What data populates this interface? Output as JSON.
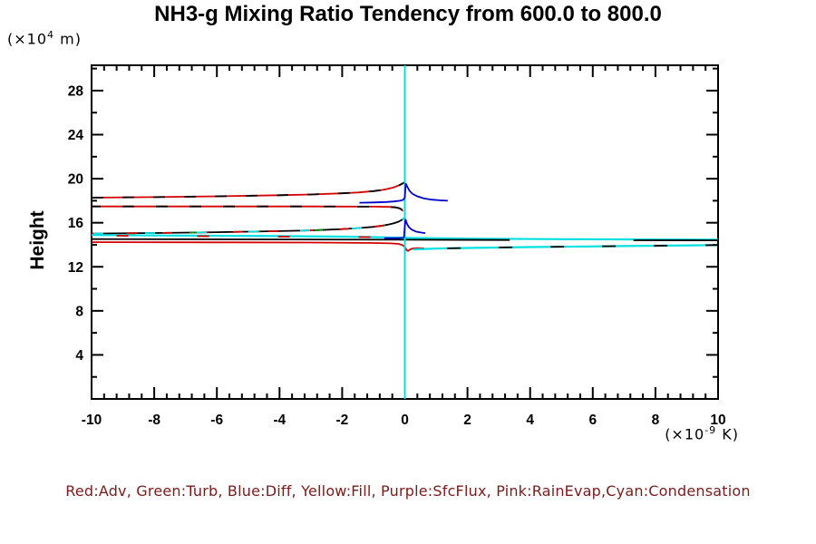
{
  "window": {
    "background": "#ffffff"
  },
  "chart_data": {
    "type": "line",
    "title": "NH3-g Mixing Ratio Tendency from 600.0 to 800.0",
    "ylabel": "Height",
    "y_unit": {
      "prefix": "(×10",
      "exponent": "4",
      "suffix": " m)"
    },
    "x_unit": {
      "prefix": "(×10",
      "exponent": "-9",
      "suffix": " K)"
    },
    "xlim": [
      -10,
      10
    ],
    "ylim": [
      0,
      30.3
    ],
    "x_major_step": 2,
    "x_minor_step": 0.4,
    "y_major_step": 4,
    "y_minor_step": 2,
    "grid": false,
    "x_tick_labels": [
      "-10",
      "-8",
      "-6",
      "-4",
      "-2",
      "0",
      "2",
      "4",
      "6",
      "8",
      "10"
    ],
    "y_tick_labels": [
      "4",
      "8",
      "12",
      "16",
      "20",
      "24",
      "28"
    ],
    "legend_text": "Red:Adv, Green:Turb, Blue:Diff, Yellow:Fill, Purple:SfcFlux, Pink:RainEvap,Cyan:Condensation",
    "legend_meaning": [
      {
        "color_name": "Red",
        "meaning": "Adv"
      },
      {
        "color_name": "Green",
        "meaning": "Turb"
      },
      {
        "color_name": "Blue",
        "meaning": "Diff"
      },
      {
        "color_name": "Yellow",
        "meaning": "Fill"
      },
      {
        "color_name": "Purple",
        "meaning": "SfcFlux"
      },
      {
        "color_name": "Pink",
        "meaning": "RainEvap"
      },
      {
        "color_name": "Cyan",
        "meaning": "Condensation"
      }
    ],
    "colors": {
      "red": "#d40000",
      "green": "#008800",
      "blue": "#0000cc",
      "cyan": "#00e0e0",
      "black": "#000000",
      "axis": "#000000",
      "legend_text": "#7a1a1a",
      "background": "#ffffff"
    },
    "series": [
      {
        "name": "adv-upper-red",
        "color": "#d40000",
        "width": 1.8,
        "points": [
          [
            -10,
            18.28
          ],
          [
            -8,
            18.33
          ],
          [
            -6,
            18.4
          ],
          [
            -4,
            18.5
          ],
          [
            -3,
            18.57
          ],
          [
            -2,
            18.67
          ],
          [
            -1.5,
            18.75
          ],
          [
            -1,
            18.87
          ],
          [
            -0.7,
            18.99
          ],
          [
            -0.5,
            19.1
          ],
          [
            -0.35,
            19.22
          ],
          [
            -0.2,
            19.38
          ],
          [
            -0.1,
            19.52
          ],
          [
            -0.03,
            19.64
          ],
          [
            0,
            19.68
          ]
        ]
      },
      {
        "name": "adv-upper-black-dash",
        "color": "#000000",
        "width": 1.8,
        "dash": "13 21",
        "points": [
          [
            -10,
            18.28
          ],
          [
            -8,
            18.33
          ],
          [
            -6,
            18.4
          ],
          [
            -4,
            18.5
          ],
          [
            -3,
            18.57
          ],
          [
            -2,
            18.67
          ],
          [
            -1.5,
            18.75
          ],
          [
            -1,
            18.87
          ],
          [
            -0.7,
            18.99
          ],
          [
            -0.5,
            19.1
          ],
          [
            -0.35,
            19.22
          ],
          [
            -0.2,
            19.38
          ],
          [
            -0.1,
            19.52
          ],
          [
            -0.03,
            19.64
          ],
          [
            0,
            19.68
          ]
        ]
      },
      {
        "name": "adv-mid-red",
        "color": "#d40000",
        "width": 1.8,
        "points": [
          [
            -10,
            17.48
          ],
          [
            -3,
            17.48
          ],
          [
            -1,
            17.46
          ],
          [
            -0.5,
            17.44
          ],
          [
            -0.3,
            17.4
          ],
          [
            -0.18,
            17.32
          ],
          [
            -0.1,
            17.2
          ],
          [
            -0.06,
            17.05
          ]
        ]
      },
      {
        "name": "adv-mid-black-dash",
        "color": "#000000",
        "width": 1.8,
        "dash": "13 24",
        "dashoffset": "40",
        "points": [
          [
            -10,
            17.48
          ],
          [
            -3,
            17.48
          ],
          [
            -1,
            17.46
          ],
          [
            -0.5,
            17.44
          ],
          [
            -0.3,
            17.4
          ],
          [
            -0.18,
            17.32
          ],
          [
            -0.1,
            17.2
          ],
          [
            -0.06,
            17.05
          ]
        ]
      },
      {
        "name": "mid-curve-black",
        "color": "#000000",
        "width": 1.8,
        "points": [
          [
            -10,
            15.02
          ],
          [
            -8,
            15.07
          ],
          [
            -6,
            15.14
          ],
          [
            -4,
            15.24
          ],
          [
            -3,
            15.31
          ],
          [
            -2,
            15.42
          ],
          [
            -1.5,
            15.51
          ],
          [
            -1,
            15.63
          ],
          [
            -0.7,
            15.74
          ],
          [
            -0.5,
            15.85
          ],
          [
            -0.35,
            15.96
          ],
          [
            -0.2,
            16.1
          ],
          [
            -0.1,
            16.25
          ],
          [
            -0.04,
            16.38
          ],
          [
            0,
            16.46
          ]
        ]
      },
      {
        "name": "mid-curve-green-dash",
        "color": "#008800",
        "width": 1.8,
        "dash": "9 60",
        "dashoffset": "30",
        "points": [
          [
            -10,
            15.02
          ],
          [
            -8,
            15.07
          ],
          [
            -6,
            15.14
          ],
          [
            -4,
            15.24
          ],
          [
            -3,
            15.31
          ],
          [
            -2,
            15.42
          ],
          [
            -1.5,
            15.51
          ],
          [
            -1,
            15.63
          ],
          [
            -0.7,
            15.74
          ],
          [
            -0.5,
            15.85
          ],
          [
            -0.35,
            15.96
          ],
          [
            -0.2,
            16.1
          ],
          [
            -0.1,
            16.25
          ],
          [
            -0.04,
            16.38
          ],
          [
            0,
            16.46
          ]
        ]
      },
      {
        "name": "mid-curve-red-dash",
        "color": "#d40000",
        "width": 1.8,
        "dash": "11 28",
        "points": [
          [
            -10,
            15.02
          ],
          [
            -8,
            15.07
          ],
          [
            -6,
            15.14
          ],
          [
            -4,
            15.24
          ],
          [
            -3,
            15.31
          ],
          [
            -2,
            15.42
          ],
          [
            -1.5,
            15.51
          ],
          [
            -1,
            15.63
          ],
          [
            -0.7,
            15.74
          ],
          [
            -0.5,
            15.85
          ],
          [
            -0.35,
            15.96
          ],
          [
            -0.2,
            16.1
          ],
          [
            -0.1,
            16.25
          ],
          [
            -0.04,
            16.38
          ],
          [
            0,
            16.46
          ]
        ]
      },
      {
        "name": "mid-curve-cyan-dash",
        "color": "#00e0e0",
        "width": 1.8,
        "dash": "11 46",
        "dashoffset": "55",
        "points": [
          [
            -10,
            15.02
          ],
          [
            -8,
            15.07
          ],
          [
            -6,
            15.14
          ],
          [
            -4,
            15.24
          ],
          [
            -3,
            15.31
          ],
          [
            -2,
            15.42
          ],
          [
            -1.5,
            15.51
          ],
          [
            -1,
            15.63
          ],
          [
            -0.7,
            15.74
          ],
          [
            -0.5,
            15.85
          ],
          [
            -0.35,
            15.96
          ],
          [
            -0.2,
            16.1
          ],
          [
            -0.1,
            16.25
          ],
          [
            -0.04,
            16.38
          ],
          [
            0,
            16.46
          ]
        ]
      },
      {
        "name": "condensation-main-cyan",
        "color": "#00e0e0",
        "width": 2.2,
        "points": [
          [
            -10,
            14.88
          ],
          [
            -4,
            14.79
          ],
          [
            -2,
            14.74
          ],
          [
            -1,
            14.7
          ],
          [
            0,
            14.62
          ],
          [
            2,
            14.56
          ],
          [
            5,
            14.51
          ],
          [
            10,
            14.47
          ]
        ]
      },
      {
        "name": "condensation-main-red-dash",
        "color": "#d40000",
        "width": 1.8,
        "dash": "13 76",
        "points": [
          [
            -9.2,
            14.82
          ],
          [
            -0.5,
            14.68
          ]
        ]
      },
      {
        "name": "total-horiz-black-left",
        "color": "#000000",
        "width": 1.8,
        "points": [
          [
            -10,
            14.52
          ],
          [
            0,
            14.46
          ],
          [
            3.35,
            14.43
          ]
        ]
      },
      {
        "name": "total-horiz-black-right",
        "color": "#000000",
        "width": 1.8,
        "points": [
          [
            7.3,
            14.41
          ],
          [
            10,
            14.4
          ]
        ]
      },
      {
        "name": "adv-lower-red",
        "color": "#d40000",
        "width": 1.8,
        "points": [
          [
            -10,
            14.24
          ],
          [
            -6,
            14.22
          ],
          [
            -3,
            14.2
          ],
          [
            -1,
            14.16
          ],
          [
            -0.45,
            14.13
          ],
          [
            -0.2,
            14.08
          ],
          [
            -0.08,
            13.97
          ],
          [
            0,
            13.8
          ],
          [
            0.06,
            13.5
          ],
          [
            0.1,
            13.44
          ],
          [
            0.16,
            13.56
          ],
          [
            0.25,
            13.66
          ],
          [
            0.4,
            13.7
          ],
          [
            0.62,
            13.68
          ]
        ]
      },
      {
        "name": "condensation-lower-cyan",
        "color": "#00e0e0",
        "width": 2.2,
        "points": [
          [
            0.28,
            13.58
          ],
          [
            1,
            13.66
          ],
          [
            2,
            13.71
          ],
          [
            4,
            13.79
          ],
          [
            7,
            13.88
          ],
          [
            10,
            13.97
          ]
        ]
      },
      {
        "name": "condensation-lower-black-dash",
        "color": "#000000",
        "width": 1.8,
        "dash": "15 42",
        "dashoffset": "20",
        "points": [
          [
            0.28,
            13.58
          ],
          [
            1,
            13.66
          ],
          [
            2,
            13.71
          ],
          [
            4,
            13.79
          ],
          [
            7,
            13.88
          ],
          [
            10,
            13.97
          ]
        ]
      },
      {
        "name": "zero-line-cyan-vertical",
        "color": "#00e0e0",
        "width": 2,
        "points": [
          [
            0,
            0
          ],
          [
            0,
            30.3
          ]
        ]
      },
      {
        "name": "diff-upper-blue",
        "color": "#0000cc",
        "width": 1.8,
        "points": [
          [
            -1.45,
            17.82
          ],
          [
            -1.0,
            17.84
          ],
          [
            -0.6,
            17.88
          ],
          [
            -0.35,
            17.93
          ],
          [
            -0.15,
            18.0
          ],
          [
            -0.05,
            18.08
          ],
          [
            0,
            18.3
          ],
          [
            0.03,
            19.58
          ],
          [
            0.08,
            19.25
          ],
          [
            0.15,
            18.9
          ],
          [
            0.25,
            18.62
          ],
          [
            0.4,
            18.4
          ],
          [
            0.6,
            18.22
          ],
          [
            0.85,
            18.1
          ],
          [
            1.1,
            18.04
          ],
          [
            1.37,
            18.0
          ]
        ]
      },
      {
        "name": "diff-mid-blue",
        "color": "#0000cc",
        "width": 1.8,
        "points": [
          [
            -0.65,
            14.6
          ],
          [
            -0.3,
            14.6
          ],
          [
            -0.12,
            14.62
          ],
          [
            -0.03,
            14.68
          ],
          [
            0.02,
            16.32
          ],
          [
            0.07,
            15.9
          ],
          [
            0.13,
            15.6
          ],
          [
            0.22,
            15.38
          ],
          [
            0.35,
            15.2
          ],
          [
            0.5,
            15.12
          ],
          [
            0.65,
            15.06
          ]
        ]
      }
    ]
  }
}
